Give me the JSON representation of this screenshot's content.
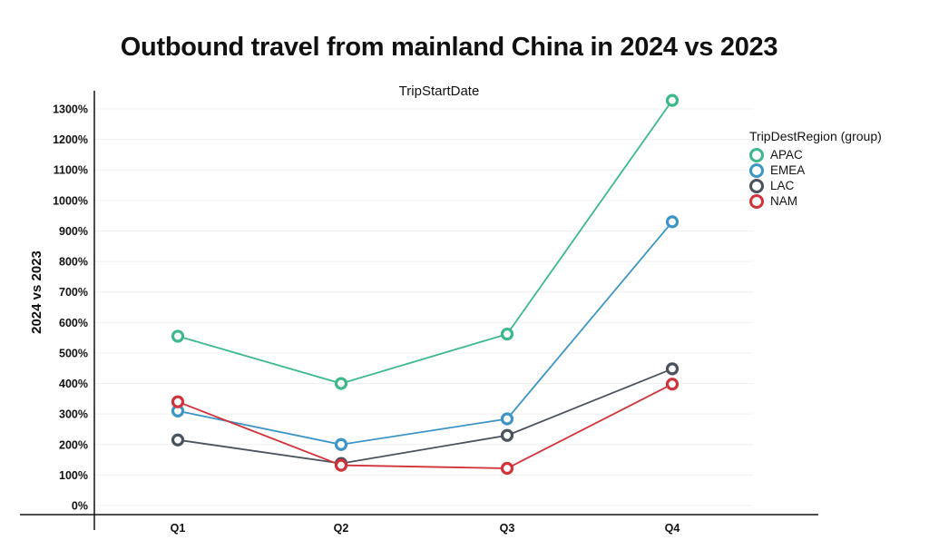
{
  "chart_data": {
    "type": "line",
    "title": "Outbound travel from mainland China in 2024 vs 2023",
    "top_label": "TripStartDate",
    "xlabel": "",
    "ylabel": "2024 vs 2023",
    "categories": [
      "Q1",
      "Q2",
      "Q3",
      "Q4"
    ],
    "yticks": [
      0,
      100,
      200,
      300,
      400,
      500,
      600,
      700,
      800,
      900,
      1000,
      1100,
      1200,
      1300
    ],
    "ytick_labels": [
      "0%",
      "100%",
      "200%",
      "300%",
      "400%",
      "500%",
      "600%",
      "700%",
      "800%",
      "900%",
      "1000%",
      "1100%",
      "1200%",
      "1300%"
    ],
    "ylim": [
      0,
      1350
    ],
    "grid": true,
    "legend": {
      "title": "TripDestRegion (group)",
      "position": "top-right"
    },
    "series": [
      {
        "name": "APAC",
        "color": "#3db88b",
        "values": [
          555,
          400,
          562,
          1328
        ]
      },
      {
        "name": "EMEA",
        "color": "#3d95c6",
        "values": [
          310,
          200,
          284,
          930
        ]
      },
      {
        "name": "LAC",
        "color": "#4a525e",
        "values": [
          215,
          138,
          230,
          448
        ]
      },
      {
        "name": "NAM",
        "color": "#d1333a",
        "values": [
          340,
          132,
          122,
          398
        ]
      }
    ]
  }
}
